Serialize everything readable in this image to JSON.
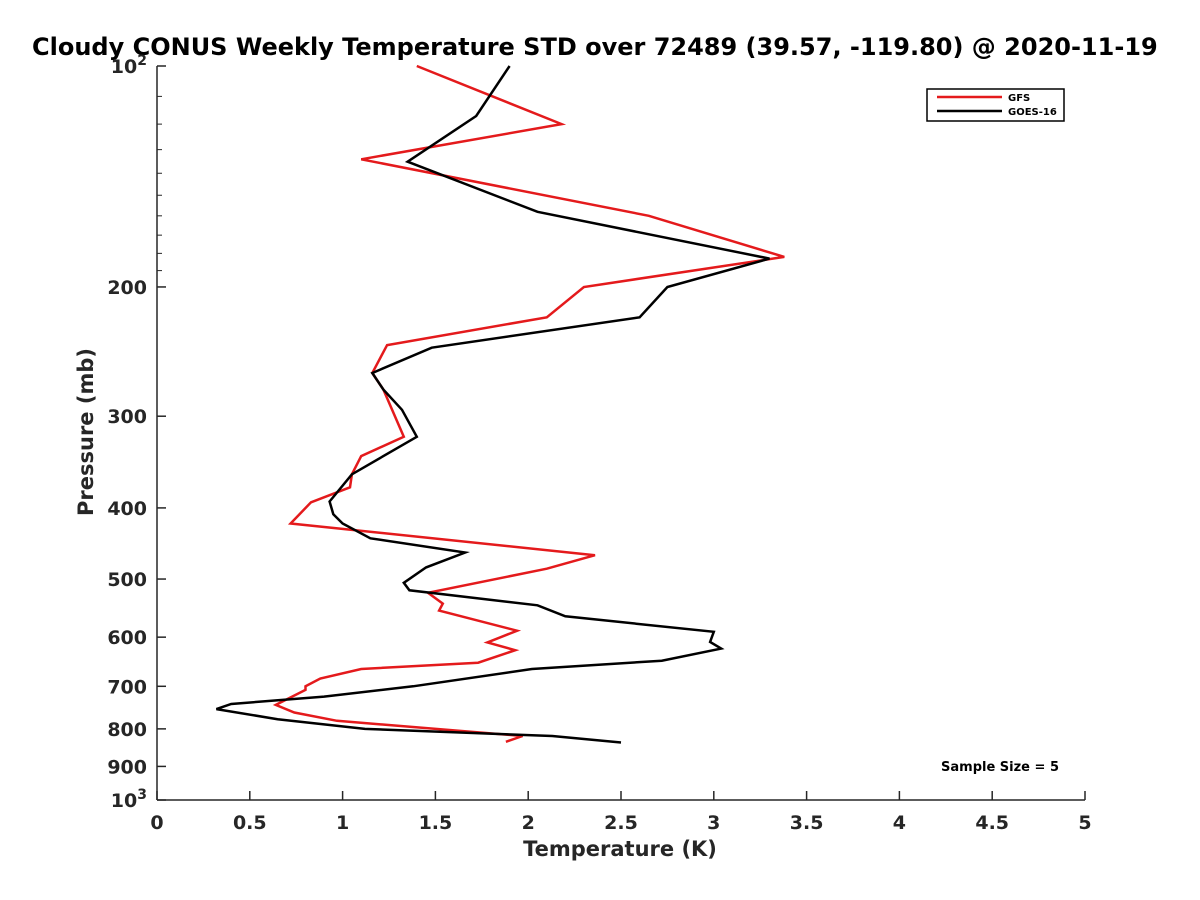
{
  "chart_data": {
    "type": "line",
    "title": "Cloudy CONUS Weekly Temperature STD over 72489 (39.57, -119.80) @ 2020-11-19",
    "xlabel": "Temperature (K)",
    "ylabel": "Pressure (mb)",
    "xlim": [
      0,
      5
    ],
    "ylim": [
      100,
      1000
    ],
    "yscale": "log",
    "y_reversed": true,
    "grid": false,
    "legend_position": "top-right",
    "x_ticks": [
      "0",
      "0.5",
      "1",
      "1.5",
      "2",
      "2.5",
      "3",
      "3.5",
      "4",
      "4.5",
      "5"
    ],
    "y_ticks": [
      {
        "value": 100,
        "label": "10",
        "sup": "2"
      },
      {
        "value": 200,
        "label": "200",
        "sup": ""
      },
      {
        "value": 300,
        "label": "300",
        "sup": ""
      },
      {
        "value": 400,
        "label": "400",
        "sup": ""
      },
      {
        "value": 500,
        "label": "500",
        "sup": ""
      },
      {
        "value": 600,
        "label": "600",
        "sup": ""
      },
      {
        "value": 700,
        "label": "700",
        "sup": ""
      },
      {
        "value": 800,
        "label": "800",
        "sup": ""
      },
      {
        "value": 900,
        "label": "900",
        "sup": ""
      },
      {
        "value": 1000,
        "label": "10",
        "sup": "3"
      }
    ],
    "series": [
      {
        "name": "GFS",
        "color": "#e41a1c",
        "points": [
          [
            1.4,
            100
          ],
          [
            2.18,
            120
          ],
          [
            1.1,
            134
          ],
          [
            2.65,
            160
          ],
          [
            3.38,
            182
          ],
          [
            2.3,
            200
          ],
          [
            2.1,
            220
          ],
          [
            1.24,
            240
          ],
          [
            1.16,
            262
          ],
          [
            1.22,
            276
          ],
          [
            1.33,
            320
          ],
          [
            1.1,
            340
          ],
          [
            1.05,
            360
          ],
          [
            1.04,
            375
          ],
          [
            0.83,
            393
          ],
          [
            0.72,
            420
          ],
          [
            2.36,
            464
          ],
          [
            2.1,
            484
          ],
          [
            1.46,
            522
          ],
          [
            1.54,
            540
          ],
          [
            1.52,
            552
          ],
          [
            1.94,
            588
          ],
          [
            1.78,
            610
          ],
          [
            1.93,
            625
          ],
          [
            1.73,
            650
          ],
          [
            1.1,
            663
          ],
          [
            0.88,
            683
          ],
          [
            0.8,
            700
          ],
          [
            0.8,
            708
          ],
          [
            0.64,
            742
          ],
          [
            0.74,
            760
          ],
          [
            0.97,
            780
          ],
          [
            1.97,
            818
          ],
          [
            1.88,
            833
          ]
        ]
      },
      {
        "name": "GOES-16",
        "color": "#000000",
        "points": [
          [
            1.9,
            100
          ],
          [
            1.72,
            117
          ],
          [
            1.35,
            135
          ],
          [
            2.05,
            158
          ],
          [
            3.3,
            183
          ],
          [
            2.75,
            200
          ],
          [
            2.6,
            220
          ],
          [
            1.48,
            242
          ],
          [
            1.16,
            262
          ],
          [
            1.22,
            276
          ],
          [
            1.32,
            294
          ],
          [
            1.4,
            320
          ],
          [
            1.05,
            360
          ],
          [
            0.93,
            392
          ],
          [
            0.95,
            408
          ],
          [
            1.0,
            420
          ],
          [
            1.15,
            440
          ],
          [
            1.66,
            460
          ],
          [
            1.45,
            482
          ],
          [
            1.33,
            506
          ],
          [
            1.36,
            518
          ],
          [
            2.05,
            543
          ],
          [
            2.2,
            562
          ],
          [
            3.0,
            590
          ],
          [
            2.98,
            609
          ],
          [
            3.04,
            622
          ],
          [
            2.72,
            646
          ],
          [
            2.02,
            663
          ],
          [
            1.38,
            700
          ],
          [
            0.9,
            723
          ],
          [
            0.4,
            740
          ],
          [
            0.32,
            752
          ],
          [
            0.65,
            776
          ],
          [
            1.12,
            800
          ],
          [
            2.13,
            818
          ],
          [
            2.5,
            835
          ]
        ]
      }
    ],
    "annotation": "Sample Size = 5"
  }
}
